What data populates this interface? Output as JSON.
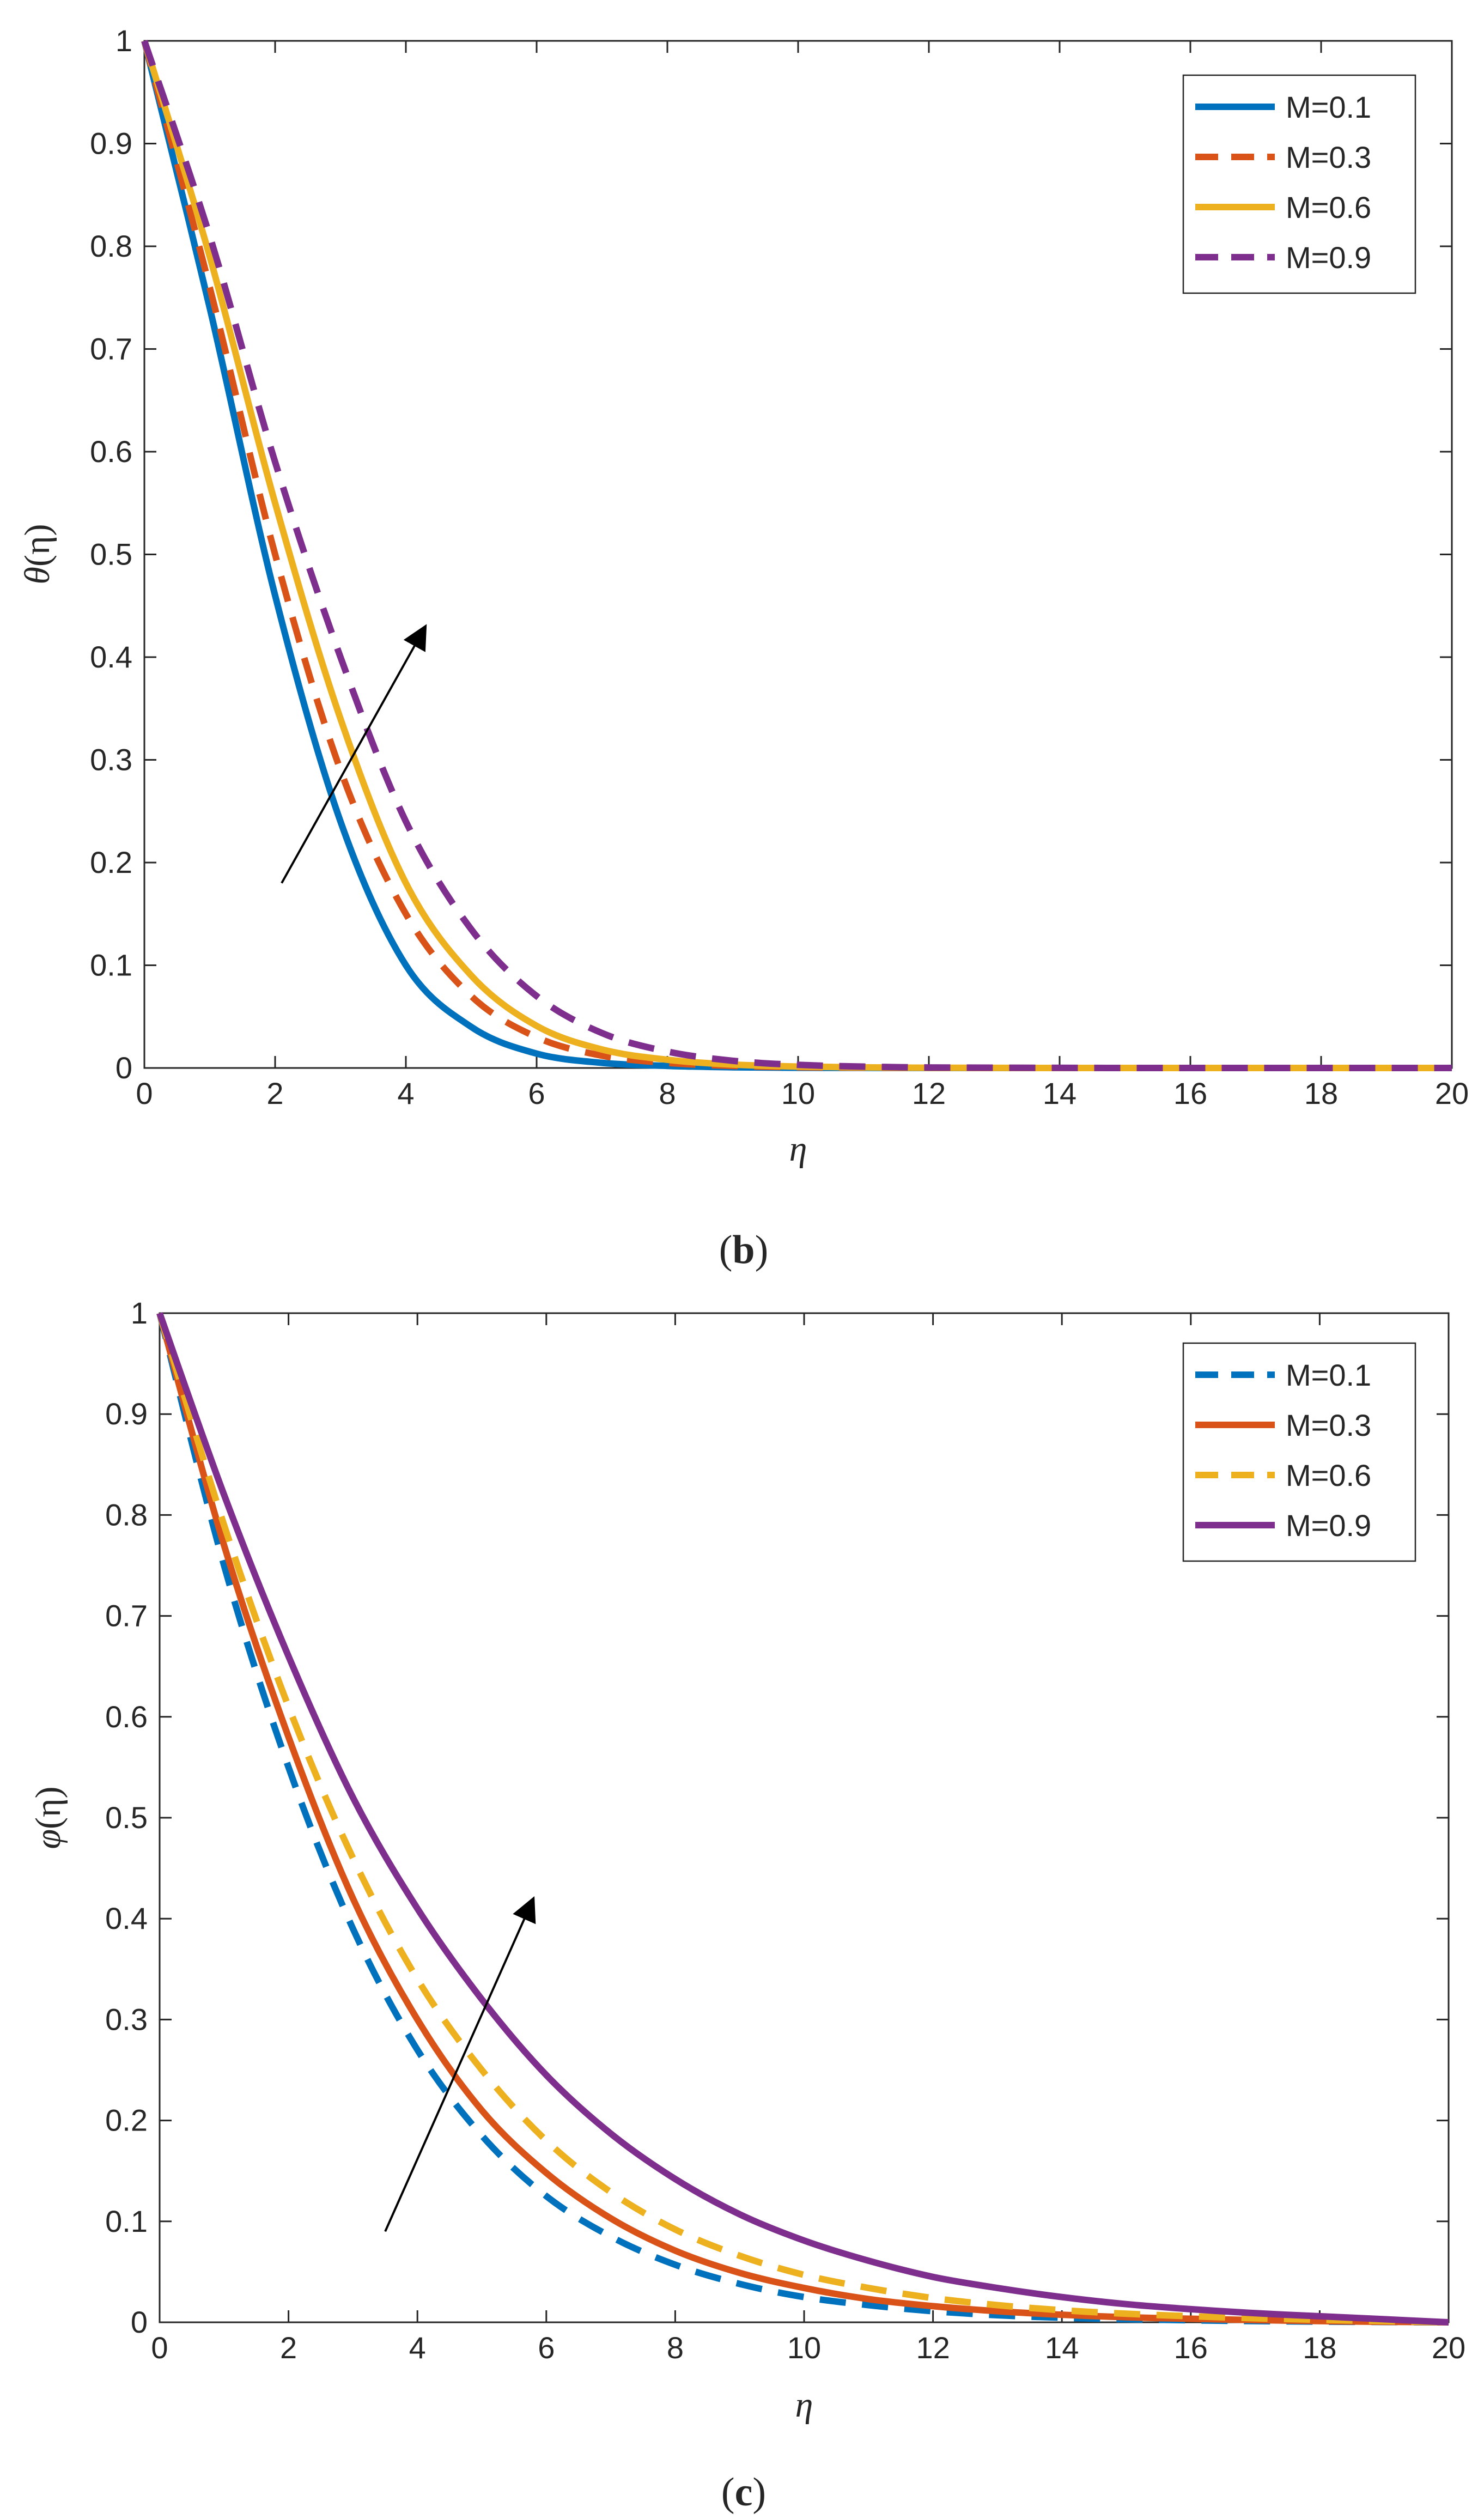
{
  "figure": {
    "panels": [
      {
        "caption_open": "(",
        "caption_letter": "b",
        "caption_close": ")",
        "xlabel": "η",
        "ylabel_sym": "θ",
        "ylabel_arg": "(η)",
        "arrow": {
          "from": [
            2.1,
            0.18
          ],
          "to": [
            4.3,
            0.43
          ]
        }
      },
      {
        "caption_open": "(",
        "caption_letter": "c",
        "caption_close": ")",
        "xlabel": "η",
        "ylabel_sym": "φ",
        "ylabel_arg": "(η)",
        "arrow": {
          "from": [
            3.5,
            0.09
          ],
          "to": [
            5.8,
            0.42
          ]
        }
      }
    ]
  },
  "chart_data": [
    {
      "type": "line",
      "title": "",
      "xlabel": "η",
      "ylabel": "θ(η)",
      "xlim": [
        0,
        20
      ],
      "ylim": [
        0,
        1
      ],
      "xticks": [
        0,
        2,
        4,
        6,
        8,
        10,
        12,
        14,
        16,
        18,
        20
      ],
      "yticks": [
        0,
        0.1,
        0.2,
        0.3,
        0.4,
        0.5,
        0.6,
        0.7,
        0.8,
        0.9,
        1
      ],
      "x_tick_labels": [
        "0",
        "2",
        "4",
        "6",
        "8",
        "10",
        "12",
        "14",
        "16",
        "18",
        "20"
      ],
      "y_tick_labels": [
        "0",
        "0.1",
        "0.2",
        "0.3",
        "0.4",
        "0.5",
        "0.6",
        "0.7",
        "0.8",
        "0.9",
        "1"
      ],
      "grid": false,
      "legend_position": "top-right",
      "x": [
        0,
        1,
        2,
        3,
        4,
        5,
        6,
        7,
        8,
        9,
        10,
        11,
        12,
        14,
        16,
        18,
        20
      ],
      "series": [
        {
          "name": "M=0.1",
          "color": "#0072BD",
          "style": "solid",
          "values": [
            1,
            0.74,
            0.46,
            0.24,
            0.1,
            0.04,
            0.014,
            0.005,
            0.002,
            0.0007,
            0.0002,
            0.0001,
            0,
            0,
            0,
            0,
            0
          ]
        },
        {
          "name": "M=0.3",
          "color": "#D95319",
          "style": "dashed",
          "values": [
            1,
            0.76,
            0.5,
            0.29,
            0.15,
            0.07,
            0.03,
            0.012,
            0.005,
            0.002,
            0.0008,
            0.0003,
            0.0001,
            0,
            0,
            0,
            0
          ]
        },
        {
          "name": "M=0.6",
          "color": "#EDB120",
          "style": "solid",
          "values": [
            1,
            0.79,
            0.55,
            0.34,
            0.18,
            0.09,
            0.041,
            0.018,
            0.008,
            0.0033,
            0.0014,
            0.0006,
            0.0002,
            0,
            0,
            0,
            0
          ]
        },
        {
          "name": "M=0.9",
          "color": "#7E2F8E",
          "style": "dashed",
          "values": [
            1,
            0.81,
            0.59,
            0.4,
            0.24,
            0.135,
            0.07,
            0.034,
            0.016,
            0.007,
            0.003,
            0.0013,
            0.0005,
            0.0001,
            0,
            0,
            0
          ]
        }
      ]
    },
    {
      "type": "line",
      "title": "",
      "xlabel": "η",
      "ylabel": "φ(η)",
      "xlim": [
        0,
        20
      ],
      "ylim": [
        0,
        1
      ],
      "xticks": [
        0,
        2,
        4,
        6,
        8,
        10,
        12,
        14,
        16,
        18,
        20
      ],
      "yticks": [
        0,
        0.1,
        0.2,
        0.3,
        0.4,
        0.5,
        0.6,
        0.7,
        0.8,
        0.9,
        1
      ],
      "x_tick_labels": [
        "0",
        "2",
        "4",
        "6",
        "8",
        "10",
        "12",
        "14",
        "16",
        "18",
        "20"
      ],
      "y_tick_labels": [
        "0",
        "0.1",
        "0.2",
        "0.3",
        "0.4",
        "0.5",
        "0.6",
        "0.7",
        "0.8",
        "0.9",
        "1"
      ],
      "grid": false,
      "legend_position": "top-right",
      "x": [
        0,
        1,
        2,
        3,
        4,
        5,
        6,
        7,
        8,
        9,
        10,
        11,
        12,
        13,
        14,
        15,
        16,
        17,
        18,
        19,
        20
      ],
      "series": [
        {
          "name": "M=0.1",
          "color": "#0072BD",
          "style": "dashed",
          "values": [
            1,
            0.75,
            0.55,
            0.39,
            0.27,
            0.185,
            0.125,
            0.085,
            0.057,
            0.038,
            0.025,
            0.017,
            0.011,
            0.007,
            0.0045,
            0.003,
            0.002,
            0.0012,
            0.0007,
            0.0003,
            0
          ]
        },
        {
          "name": "M=0.3",
          "color": "#D95319",
          "style": "solid",
          "values": [
            1,
            0.77,
            0.58,
            0.42,
            0.3,
            0.21,
            0.148,
            0.103,
            0.071,
            0.049,
            0.034,
            0.023,
            0.016,
            0.011,
            0.0075,
            0.005,
            0.0035,
            0.0022,
            0.0012,
            0.0005,
            0
          ]
        },
        {
          "name": "M=0.6",
          "color": "#EDB120",
          "style": "dashed",
          "values": [
            1,
            0.79,
            0.61,
            0.46,
            0.34,
            0.25,
            0.18,
            0.129,
            0.092,
            0.066,
            0.047,
            0.034,
            0.024,
            0.017,
            0.012,
            0.0085,
            0.006,
            0.004,
            0.0025,
            0.0012,
            0
          ]
        },
        {
          "name": "M=0.9",
          "color": "#7E2F8E",
          "style": "solid",
          "values": [
            1,
            0.82,
            0.66,
            0.52,
            0.41,
            0.32,
            0.245,
            0.187,
            0.142,
            0.107,
            0.081,
            0.061,
            0.045,
            0.034,
            0.025,
            0.018,
            0.013,
            0.009,
            0.006,
            0.003,
            0
          ]
        }
      ]
    }
  ]
}
